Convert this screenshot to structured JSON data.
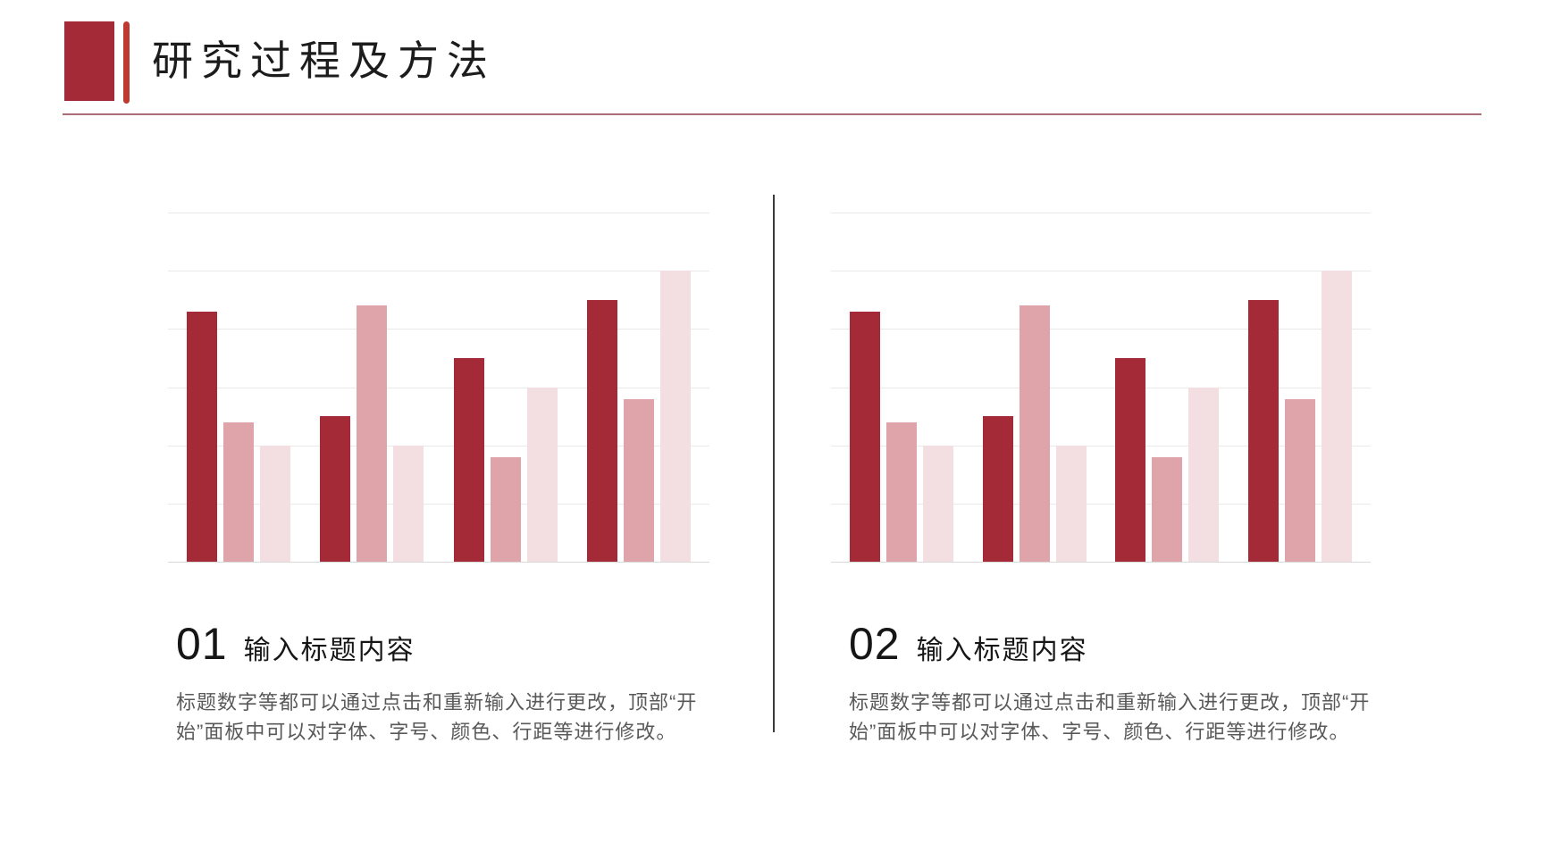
{
  "slide": {
    "title": "研究过程及方法",
    "colors": {
      "accent_square": "#A42A38",
      "accent_bar": "#BE3A30",
      "title_underline": "#AD6B77",
      "divider": "#3C3C3C",
      "gridline": "#E9E9E9",
      "baseline": "#D8D8D8",
      "heading_text": "#161616",
      "body_text": "#595959"
    }
  },
  "chart_data": [
    {
      "type": "bar",
      "title": "",
      "xlabel": "",
      "ylabel": "",
      "ylim": [
        0,
        6
      ],
      "gridline_count": 7,
      "grid": true,
      "legend": false,
      "axis_labels_visible": false,
      "groups": 4,
      "series": [
        {
          "name": "series-1",
          "color": "#A42A38",
          "values": [
            4.3,
            2.5,
            3.5,
            4.5
          ]
        },
        {
          "name": "series-2",
          "color": "#DFA4A9",
          "values": [
            2.4,
            4.4,
            1.8,
            2.8
          ]
        },
        {
          "name": "series-3",
          "color": "#F3DEE1",
          "values": [
            2,
            2,
            3,
            5
          ]
        }
      ]
    },
    {
      "type": "bar",
      "title": "",
      "xlabel": "",
      "ylabel": "",
      "ylim": [
        0,
        6
      ],
      "gridline_count": 7,
      "grid": true,
      "legend": false,
      "axis_labels_visible": false,
      "groups": 4,
      "series": [
        {
          "name": "series-1",
          "color": "#A42A38",
          "values": [
            4.3,
            2.5,
            3.5,
            4.5
          ]
        },
        {
          "name": "series-2",
          "color": "#DFA4A9",
          "values": [
            2.4,
            4.4,
            1.8,
            2.8
          ]
        },
        {
          "name": "series-3",
          "color": "#F3DEE1",
          "values": [
            2,
            2,
            3,
            5
          ]
        }
      ]
    }
  ],
  "sections": [
    {
      "number": "01",
      "heading": "输入标题内容",
      "body_lines": [
        "标题数字等都可以通过点击和重新输入进行更改，顶部“开",
        "始”面板中可以对字体、字号、颜色、行距等进行修改。"
      ]
    },
    {
      "number": "02",
      "heading": "输入标题内容",
      "body_lines": [
        "标题数字等都可以通过点击和重新输入进行更改，顶部“开",
        "始”面板中可以对字体、字号、颜色、行距等进行修改。"
      ]
    }
  ]
}
